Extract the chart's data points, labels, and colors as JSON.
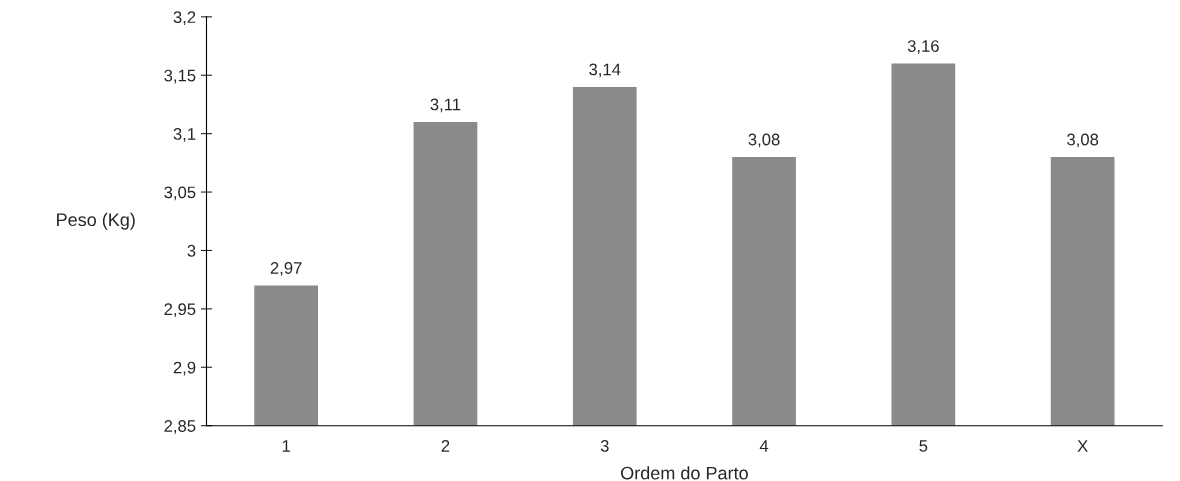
{
  "chart_data": {
    "type": "bar",
    "xlabel": "Ordem do Parto",
    "ylabel": "Peso (Kg)",
    "categories": [
      "1",
      "2",
      "3",
      "4",
      "5",
      "X"
    ],
    "values": [
      2.97,
      3.11,
      3.14,
      3.08,
      3.16,
      3.08
    ],
    "value_labels": [
      "2,97",
      "3,11",
      "3,14",
      "3,08",
      "3,16",
      "3,08"
    ],
    "color": "#8a8a8a",
    "ylim": [
      2.85,
      3.2
    ],
    "yticks": [
      {
        "value": 2.85,
        "label": "2,85"
      },
      {
        "value": 2.9,
        "label": "2,9"
      },
      {
        "value": 2.95,
        "label": "2,95"
      },
      {
        "value": 3,
        "label": "3"
      },
      {
        "value": 3.05,
        "label": "3,05"
      },
      {
        "value": 3.1,
        "label": "3,1"
      },
      {
        "value": 3.15,
        "label": "3,15"
      },
      {
        "value": 3.2,
        "label": "3,2"
      }
    ],
    "grid": false,
    "legend": false
  }
}
